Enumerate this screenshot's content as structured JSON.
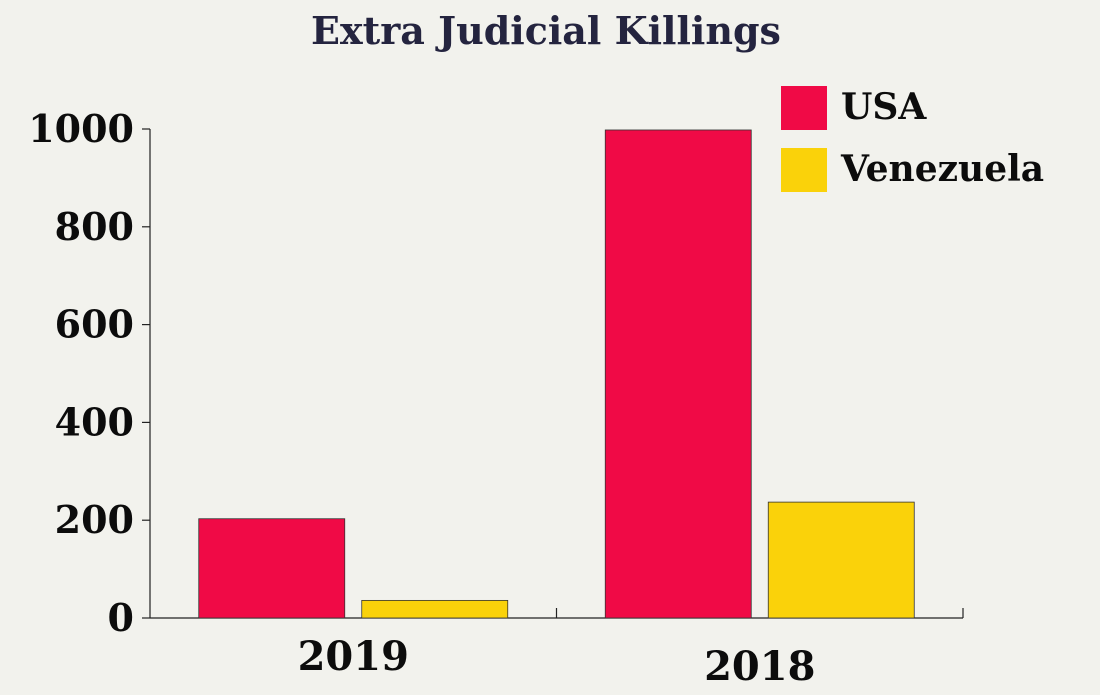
{
  "chart_data": {
    "type": "bar",
    "title": "Extra Judicial Killings",
    "categories": [
      "2019",
      "2018"
    ],
    "series": [
      {
        "name": "USA",
        "values": [
          203,
          998
        ],
        "color": "#f00a46"
      },
      {
        "name": "Venezuela",
        "values": [
          36,
          237
        ],
        "color": "#fad20a"
      }
    ],
    "yticks": [
      "0",
      "200",
      "400",
      "600",
      "800",
      "1000"
    ],
    "ylim": [
      0,
      1000
    ],
    "xlabel": "",
    "ylabel": "",
    "grid": false,
    "legend_position": "top-right"
  }
}
